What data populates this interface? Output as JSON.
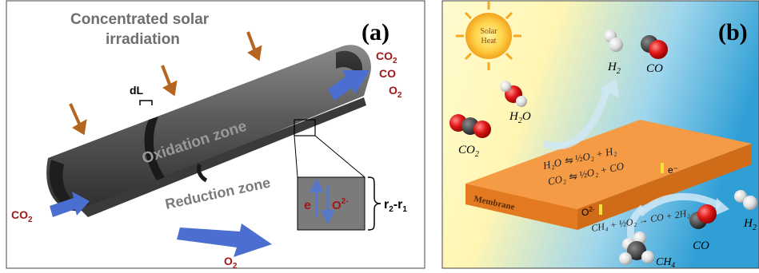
{
  "panel_a": {
    "label": "(a)",
    "irradiation_line1": "Concentrated solar",
    "irradiation_line2": "irradiation",
    "dl": "dL",
    "oxidation_zone": "Oxidation zone",
    "reduction_zone": "Reduction zone",
    "co2_in": "CO",
    "co2_in_sub": "2",
    "o2_out": "O",
    "o2_out_sub": "2",
    "out_co2": "CO",
    "out_co2_sub": "2",
    "out_co": "CO",
    "out_o2": "O",
    "out_o2_sub": "2",
    "electron": "e",
    "oxide_ion": "O",
    "oxide_charge": "2-",
    "thickness": "r",
    "thickness_sub2": "2",
    "thickness_mid": "-r",
    "thickness_sub1": "1",
    "colors": {
      "tube": "#4a4a4a",
      "arrow_solar": "#b5651d",
      "arrow_flow": "#4a6fd0",
      "label_red": "#a01818"
    }
  },
  "panel_b": {
    "label": "(b)",
    "sun_label_line1": "Solar",
    "sun_label_line2": "Heat",
    "h2_top": "H",
    "h2_top_sub": "2",
    "co_top": "CO",
    "h2o": "H",
    "h2o_sub": "2",
    "h2o_tail": "O",
    "co2_left": "CO",
    "co2_left_sub": "2",
    "rxn1": "H₂O ⇋ ½O₂ + H₂",
    "rxn2": "CO₂ ⇋ ½O₂ + CO",
    "electron": "e⁻",
    "o2_ion": "O",
    "o2_ion_charge": "2-",
    "membrane": "Membrane",
    "rxn3": "CH₄ + ½O₂ → CO + 2H₂",
    "co_bottom": "CO",
    "h2_right": "H",
    "h2_right_sub": "2",
    "ch4": "CH",
    "ch4_sub": "4",
    "colors": {
      "membrane_top": "#f59a45",
      "membrane_front": "#e37a22",
      "sky_left": "#fff9c4",
      "sky_right": "#3aa9dc"
    }
  }
}
